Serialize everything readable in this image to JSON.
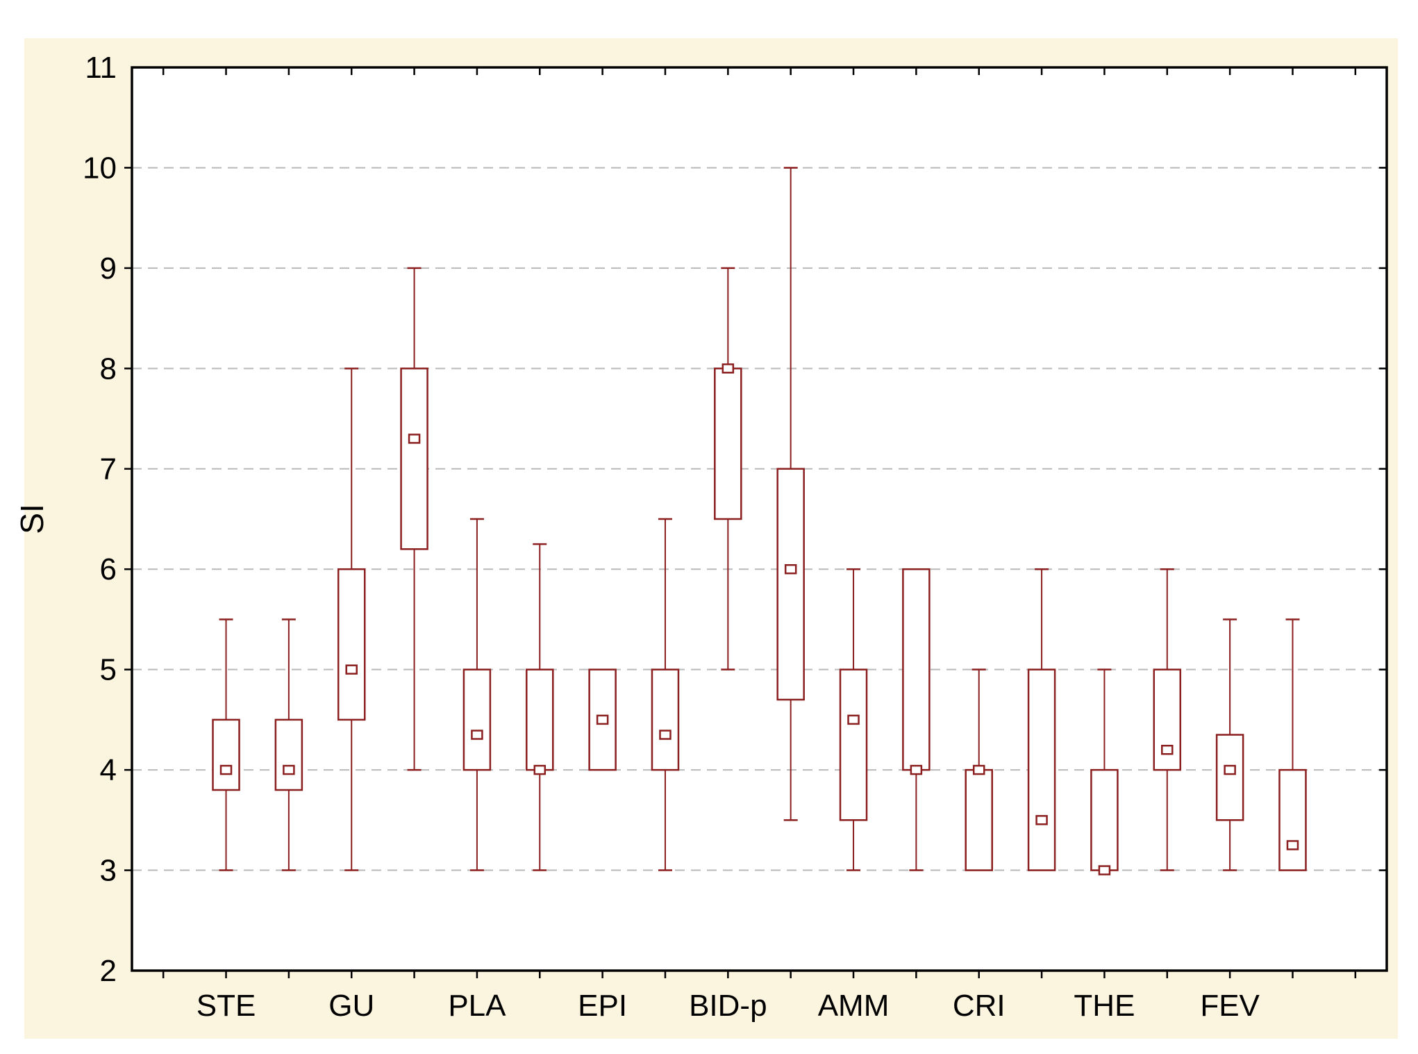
{
  "chart_data": {
    "type": "box",
    "title": "",
    "ylabel": "SI",
    "xlabel": "",
    "ylim": [
      2,
      11
    ],
    "yticks": [
      2,
      3,
      4,
      5,
      6,
      7,
      8,
      9,
      10,
      11
    ],
    "grid": "horizontal-dashed-at-integers-3-to-10",
    "legend": "none",
    "categories": [
      "STE",
      "GU",
      "PLA",
      "EPI",
      "BID-p",
      "AMM",
      "CRI",
      "THE",
      "FEV"
    ],
    "boxes_per_category": 2,
    "box_structure": [
      "whisker_low",
      "q1",
      "median",
      "q3",
      "whisker_high"
    ],
    "series": [
      {
        "category": "STE",
        "boxes": [
          {
            "whisker_low": 3.0,
            "q1": 3.8,
            "median": 4.0,
            "q3": 4.5,
            "whisker_high": 5.5
          },
          {
            "whisker_low": 3.0,
            "q1": 3.8,
            "median": 4.0,
            "q3": 4.5,
            "whisker_high": 5.5
          }
        ]
      },
      {
        "category": "GU",
        "boxes": [
          {
            "whisker_low": 3.0,
            "q1": 4.5,
            "median": 5.0,
            "q3": 6.0,
            "whisker_high": 8.0
          },
          {
            "whisker_low": 4.0,
            "q1": 6.2,
            "median": 7.3,
            "q3": 8.0,
            "whisker_high": 9.0
          }
        ]
      },
      {
        "category": "PLA",
        "boxes": [
          {
            "whisker_low": 3.0,
            "q1": 4.0,
            "median": 4.35,
            "q3": 5.0,
            "whisker_high": 6.5
          },
          {
            "whisker_low": 3.0,
            "q1": 4.0,
            "median": 4.0,
            "q3": 5.0,
            "whisker_high": 6.25
          }
        ]
      },
      {
        "category": "EPI",
        "boxes": [
          {
            "whisker_low": 4.0,
            "q1": 4.0,
            "median": 4.5,
            "q3": 5.0,
            "whisker_high": 5.0
          },
          {
            "whisker_low": 3.0,
            "q1": 4.0,
            "median": 4.35,
            "q3": 5.0,
            "whisker_high": 6.5
          }
        ]
      },
      {
        "category": "BID-p",
        "boxes": [
          {
            "whisker_low": 5.0,
            "q1": 6.5,
            "median": 8.0,
            "q3": 8.0,
            "whisker_high": 9.0
          },
          {
            "whisker_low": 3.5,
            "q1": 4.7,
            "median": 6.0,
            "q3": 7.0,
            "whisker_high": 10.0
          }
        ]
      },
      {
        "category": "AMM",
        "boxes": [
          {
            "whisker_low": 3.0,
            "q1": 3.5,
            "median": 4.5,
            "q3": 5.0,
            "whisker_high": 6.0
          },
          {
            "whisker_low": 3.0,
            "q1": 4.0,
            "median": 4.0,
            "q3": 6.0,
            "whisker_high": 6.0
          }
        ]
      },
      {
        "category": "CRI",
        "boxes": [
          {
            "whisker_low": 3.0,
            "q1": 3.0,
            "median": 4.0,
            "q3": 4.0,
            "whisker_high": 5.0
          },
          {
            "whisker_low": 3.0,
            "q1": 3.0,
            "median": 3.5,
            "q3": 5.0,
            "whisker_high": 6.0
          }
        ]
      },
      {
        "category": "THE",
        "boxes": [
          {
            "whisker_low": 3.0,
            "q1": 3.0,
            "median": 3.0,
            "q3": 4.0,
            "whisker_high": 5.0
          },
          {
            "whisker_low": 3.0,
            "q1": 4.0,
            "median": 4.2,
            "q3": 5.0,
            "whisker_high": 6.0
          }
        ]
      },
      {
        "category": "FEV",
        "boxes": [
          {
            "whisker_low": 3.0,
            "q1": 3.5,
            "median": 4.0,
            "q3": 4.35,
            "whisker_high": 5.5
          },
          {
            "whisker_low": 3.0,
            "q1": 3.0,
            "median": 3.25,
            "q3": 4.0,
            "whisker_high": 5.5
          }
        ]
      }
    ],
    "layout": {
      "x_slot_count": 20,
      "first_box_slot": 1,
      "label_under": "first-box-of-pair",
      "ticks": "every-slot-top-and-bottom, every-integer-left-and-right",
      "legend_position": "none"
    },
    "colors": {
      "box_line": "#8b1e1e",
      "grid_line": "#b9b9b9",
      "axis_line": "#000000",
      "plot_background": "#ffffff",
      "panel_background": "#fbf4df",
      "page_background": "#ffffff",
      "text": "#000000"
    }
  }
}
